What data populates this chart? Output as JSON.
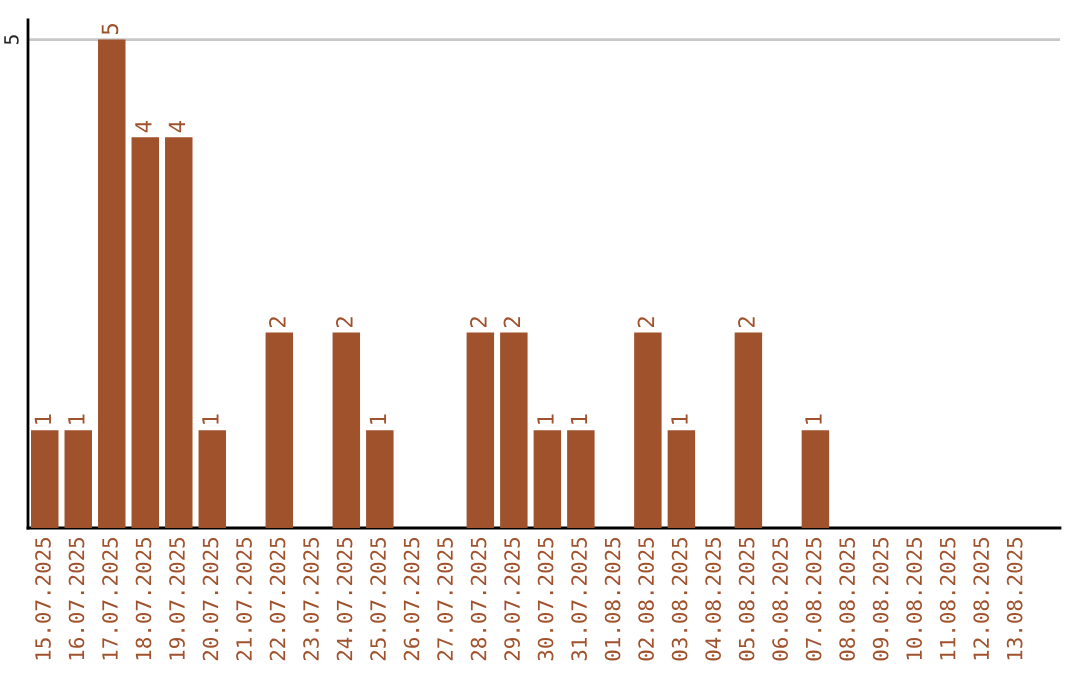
{
  "chart_data": {
    "type": "bar",
    "categories": [
      "15.07.2025",
      "16.07.2025",
      "17.07.2025",
      "18.07.2025",
      "19.07.2025",
      "20.07.2025",
      "21.07.2025",
      "22.07.2025",
      "23.07.2025",
      "24.07.2025",
      "25.07.2025",
      "26.07.2025",
      "27.07.2025",
      "28.07.2025",
      "29.07.2025",
      "30.07.2025",
      "31.07.2025",
      "01.08.2025",
      "02.08.2025",
      "03.08.2025",
      "04.08.2025",
      "05.08.2025",
      "06.08.2025",
      "07.08.2025",
      "08.08.2025",
      "09.08.2025",
      "10.08.2025",
      "11.08.2025",
      "12.08.2025",
      "13.08.2025"
    ],
    "values": [
      1,
      1,
      5,
      4,
      4,
      1,
      0,
      2,
      0,
      2,
      1,
      0,
      0,
      2,
      2,
      1,
      1,
      0,
      2,
      1,
      0,
      2,
      0,
      1,
      0,
      0,
      0,
      0,
      0,
      0
    ],
    "value_labels": [
      "1",
      "1",
      "5",
      "4",
      "4",
      "1",
      null,
      "2",
      null,
      "2",
      "1",
      null,
      null,
      "2",
      "2",
      "1",
      "1",
      null,
      "2",
      "1",
      null,
      "2",
      null,
      "1",
      null,
      null,
      null,
      null,
      null,
      null
    ],
    "color": "#a0522d",
    "ylim": [
      0,
      5.2
    ],
    "yticks": [
      5
    ],
    "grid": "y",
    "legend": false
  }
}
